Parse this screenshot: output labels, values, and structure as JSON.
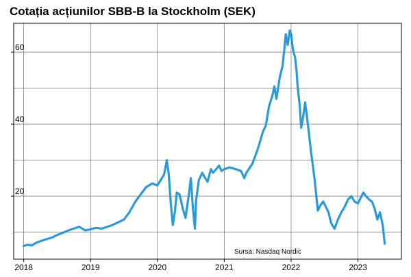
{
  "chart_data": {
    "type": "line",
    "title": "Cotația acțiunilor SBB-B la Stockholm (SEK)",
    "source": "Sursa: Nasdaq Nordic",
    "xlim": [
      2017.85,
      2023.65
    ],
    "ylim": [
      2.5,
      68
    ],
    "x_ticks": [
      "2018",
      "2019",
      "2020",
      "2021",
      "2022",
      "2023"
    ],
    "y_ticks": [
      "20",
      "40",
      "60"
    ],
    "grid": true,
    "color": "#2a9ad9",
    "series": [
      {
        "x": [
          2018.0,
          2018.06,
          2018.12,
          2018.18,
          2018.25,
          2018.33,
          2018.42,
          2018.5,
          2018.58,
          2018.67,
          2018.75,
          2018.83,
          2018.92,
          2019.0,
          2019.08,
          2019.17,
          2019.25,
          2019.33,
          2019.42,
          2019.5,
          2019.58,
          2019.67,
          2019.75,
          2019.83,
          2019.92,
          2020.0,
          2020.05,
          2020.1,
          2020.14,
          2020.17,
          2020.2,
          2020.23,
          2020.26,
          2020.29,
          2020.33,
          2020.38,
          2020.42,
          2020.47,
          2020.5,
          2020.53,
          2020.56,
          2020.58,
          2020.62,
          2020.67,
          2020.7,
          2020.75,
          2020.8,
          2020.83,
          2020.88,
          2020.92,
          2020.96,
          2021.0,
          2021.08,
          2021.17,
          2021.25,
          2021.3,
          2021.33,
          2021.42,
          2021.5,
          2021.58,
          2021.62,
          2021.67,
          2021.72,
          2021.75,
          2021.78,
          2021.83,
          2021.87,
          2021.9,
          2021.92,
          2021.95,
          2021.98,
          2022.0,
          2022.03,
          2022.06,
          2022.08,
          2022.1,
          2022.13,
          2022.15,
          2022.18,
          2022.21,
          2022.25,
          2022.3,
          2022.35,
          2022.4,
          2022.44,
          2022.48,
          2022.52,
          2022.56,
          2022.6,
          2022.65,
          2022.7,
          2022.75,
          2022.8,
          2022.85,
          2022.9,
          2022.95,
          2023.0,
          2023.04,
          2023.08,
          2023.12,
          2023.17,
          2023.21,
          2023.25,
          2023.29,
          2023.33,
          2023.37,
          2023.4
        ],
        "y": [
          6.2,
          6.5,
          6.3,
          7.0,
          7.5,
          8.0,
          8.5,
          9.2,
          9.8,
          10.5,
          11.0,
          11.5,
          10.5,
          10.8,
          11.2,
          11.0,
          11.5,
          12.0,
          12.8,
          13.5,
          15.5,
          18.5,
          20.5,
          22.5,
          23.5,
          23.0,
          24.5,
          26.0,
          30.0,
          26.0,
          18.0,
          12.0,
          15.5,
          21.0,
          20.5,
          16.5,
          14.0,
          20.5,
          25.0,
          17.0,
          11.0,
          19.0,
          24.5,
          26.5,
          25.5,
          24.0,
          27.5,
          26.5,
          27.5,
          28.5,
          27.0,
          27.5,
          28.0,
          27.5,
          27.0,
          25.0,
          26.5,
          29.0,
          33.0,
          38.0,
          39.5,
          45.0,
          48.0,
          50.5,
          47.0,
          53.0,
          56.0,
          61.0,
          65.0,
          62.0,
          66.0,
          65.0,
          60.5,
          58.5,
          55.0,
          50.0,
          45.0,
          39.0,
          42.0,
          46.0,
          40.0,
          32.0,
          25.0,
          16.0,
          17.5,
          18.5,
          17.0,
          15.5,
          12.5,
          11.0,
          13.5,
          15.5,
          17.0,
          19.0,
          20.0,
          18.5,
          18.0,
          19.5,
          21.0,
          20.0,
          19.0,
          18.5,
          16.5,
          13.5,
          15.5,
          12.0,
          6.8
        ]
      }
    ]
  }
}
